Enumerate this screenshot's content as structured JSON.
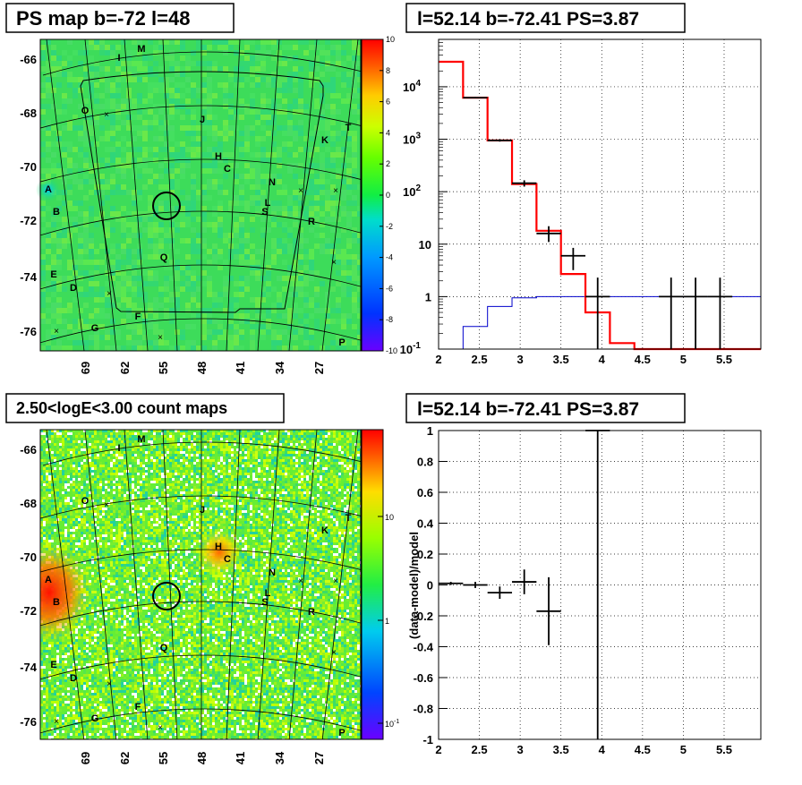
{
  "panels": {
    "ps_map_title": "PS map b=-72 l=48",
    "count_map_title": "2.50<logE<3.00 count maps",
    "spectrum_title": "l=52.14 b=-72.41 PS=3.87",
    "residual_title": "l=52.14 b=-72.41 PS=3.87"
  },
  "colors": {
    "data": "#000000",
    "model": "#ff0000",
    "background": "#0000cc",
    "grid": "#000000"
  },
  "chart_data": [
    {
      "type": "heatmap",
      "id": "ps_map",
      "title": "PS map b=-72 l=48",
      "y_ticks": [
        "-66",
        "-68",
        "-70",
        "-72",
        "-74",
        "-76"
      ],
      "x_ticks": [
        "69",
        "62",
        "55",
        "48",
        "41",
        "34",
        "27"
      ],
      "colorbar_ticks": [
        "10",
        "8",
        "6",
        "4",
        "2",
        "0",
        "-2",
        "-4",
        "-6",
        "-8",
        "-10"
      ],
      "colorbar_range": [
        -10,
        10
      ],
      "source_labels": [
        "M",
        "I",
        "O",
        "J",
        "K",
        "T",
        "H",
        "C",
        "N",
        "A",
        "L",
        "S",
        "B",
        "R",
        "Q",
        "E",
        "D",
        "F",
        "G",
        "P"
      ],
      "background_level": 0
    },
    {
      "type": "heatmap",
      "id": "count_map",
      "title": "2.50<logE<3.00 count maps",
      "y_ticks": [
        "-66",
        "-68",
        "-70",
        "-72",
        "-74",
        "-76"
      ],
      "x_ticks": [
        "69",
        "62",
        "55",
        "48",
        "41",
        "34",
        "27"
      ],
      "colorbar_ticks": [
        "10",
        "1",
        "10-1"
      ],
      "colorbar_scale": "log",
      "source_labels": [
        "M",
        "I",
        "O",
        "J",
        "K",
        "T",
        "H",
        "C",
        "N",
        "A",
        "L",
        "S",
        "B",
        "R",
        "Q",
        "E",
        "D",
        "F",
        "G",
        "P"
      ]
    },
    {
      "type": "line",
      "id": "spectrum",
      "title": "l=52.14 b=-72.41 PS=3.87",
      "x_ticks": [
        "2",
        "2.5",
        "3",
        "3.5",
        "4",
        "4.5",
        "5",
        "5.5"
      ],
      "xlim": [
        2,
        5.95
      ],
      "y_scale": "log",
      "ylim": [
        0.1,
        80000
      ],
      "y_ticks": [
        "10^-1",
        "1",
        "10",
        "10^2",
        "10^3",
        "10^4"
      ],
      "grid": true,
      "series": [
        {
          "role": "model",
          "color": "#ff0000",
          "bin_edges": [
            2.0,
            2.3,
            2.6,
            2.9,
            3.2,
            3.5,
            3.8,
            4.1,
            4.4,
            4.7,
            5.0,
            5.3,
            5.6,
            5.95
          ],
          "values": [
            30000,
            6200,
            950,
            140,
            18,
            2.7,
            0.5,
            0.13,
            0.1,
            0.1,
            0.1,
            0.1,
            0.1
          ]
        },
        {
          "role": "background",
          "color": "#0000cc",
          "bin_edges": [
            2.3,
            2.6,
            2.9,
            3.2,
            3.5,
            3.8,
            4.1,
            4.4,
            4.7,
            5.0,
            5.3,
            5.6,
            5.95
          ],
          "values": [
            0.27,
            0.65,
            0.95,
            1.0,
            1.0,
            1.0,
            1.0,
            1.0,
            1.0,
            1.0,
            1.0,
            1.0
          ]
        },
        {
          "role": "data",
          "color": "#000000",
          "points": [
            {
              "x": 2.45,
              "y": 6200,
              "xerr": 0.15,
              "ylo": 6000,
              "yhi": 6400
            },
            {
              "x": 2.75,
              "y": 950,
              "xerr": 0.15,
              "ylo": 900,
              "yhi": 1000
            },
            {
              "x": 3.05,
              "y": 145,
              "xerr": 0.15,
              "ylo": 125,
              "yhi": 165
            },
            {
              "x": 3.35,
              "y": 16,
              "xerr": 0.15,
              "ylo": 11,
              "yhi": 22
            },
            {
              "x": 3.65,
              "y": 6,
              "xerr": 0.15,
              "ylo": 3.2,
              "yhi": 8.5
            },
            {
              "x": 3.95,
              "y": 1.0,
              "xerr": 0.15,
              "ylo": 0.1,
              "yhi": 2.3
            },
            {
              "x": 4.85,
              "y": 1.0,
              "xerr": 0.15,
              "ylo": 0.1,
              "yhi": 2.3
            },
            {
              "x": 5.15,
              "y": 1.0,
              "xerr": 0.15,
              "ylo": 0.1,
              "yhi": 2.3
            },
            {
              "x": 5.45,
              "y": 1.0,
              "xerr": 0.15,
              "ylo": 0.1,
              "yhi": 2.3
            }
          ]
        }
      ]
    },
    {
      "type": "scatter",
      "id": "residual",
      "title": "l=52.14 b=-72.41 PS=3.87",
      "ylabel": "(data-model)/model",
      "x_ticks": [
        "2",
        "2.5",
        "3",
        "3.5",
        "4",
        "4.5",
        "5",
        "5.5"
      ],
      "xlim": [
        2,
        5.95
      ],
      "y_ticks": [
        "1",
        "0.8",
        "0.6",
        "0.4",
        "0.2",
        "0",
        "-0.2",
        "-0.4",
        "-0.6",
        "-0.8",
        "-1"
      ],
      "ylim": [
        -1,
        1
      ],
      "grid": true,
      "points": [
        {
          "x": 2.15,
          "y": 0.01,
          "xerr": 0.15,
          "yerr": 0.01
        },
        {
          "x": 2.45,
          "y": 0.0,
          "xerr": 0.15,
          "yerr": 0.02
        },
        {
          "x": 2.75,
          "y": -0.05,
          "xerr": 0.15,
          "yerr": 0.04
        },
        {
          "x": 3.05,
          "y": 0.02,
          "xerr": 0.15,
          "yerr": 0.08
        },
        {
          "x": 3.35,
          "y": -0.17,
          "xerr": 0.15,
          "yerr": 0.22
        },
        {
          "x": 3.95,
          "y": 1.0,
          "xerr": 0.15,
          "yerr": 2.0
        }
      ]
    }
  ]
}
